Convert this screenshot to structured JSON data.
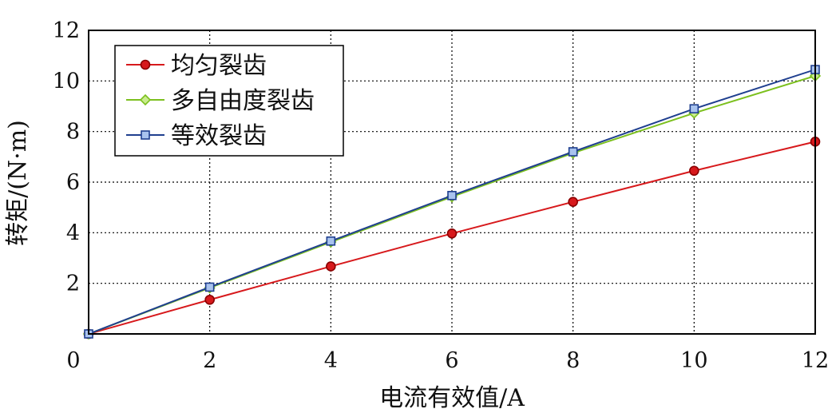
{
  "chart_data": {
    "type": "line",
    "title": "",
    "xlabel": "电流有效值/A",
    "ylabel": "转矩/(N·m)",
    "xlim": [
      0,
      12
    ],
    "ylim": [
      0,
      12
    ],
    "xticks": [
      "0",
      "2",
      "4",
      "6",
      "8",
      "10",
      "12"
    ],
    "yticks": [
      "2",
      "4",
      "6",
      "8",
      "10",
      "12"
    ],
    "grid": true,
    "legend_position": "top-left",
    "x": [
      0,
      2,
      4,
      6,
      8,
      10,
      12
    ],
    "series": [
      {
        "name": "均匀裂齿",
        "color": "#d7191c",
        "marker": "circle",
        "values": [
          0,
          1.35,
          2.67,
          3.97,
          5.22,
          6.45,
          7.6
        ]
      },
      {
        "name": "多自由度裂齿",
        "color": "#7cc01e",
        "marker": "diamond",
        "values": [
          0,
          1.82,
          3.63,
          5.42,
          7.15,
          8.73,
          10.2
        ]
      },
      {
        "name": "等效裂齿",
        "color": "#1f3f8f",
        "marker": "square",
        "values": [
          0,
          1.85,
          3.67,
          5.47,
          7.2,
          8.9,
          10.45
        ]
      }
    ]
  }
}
